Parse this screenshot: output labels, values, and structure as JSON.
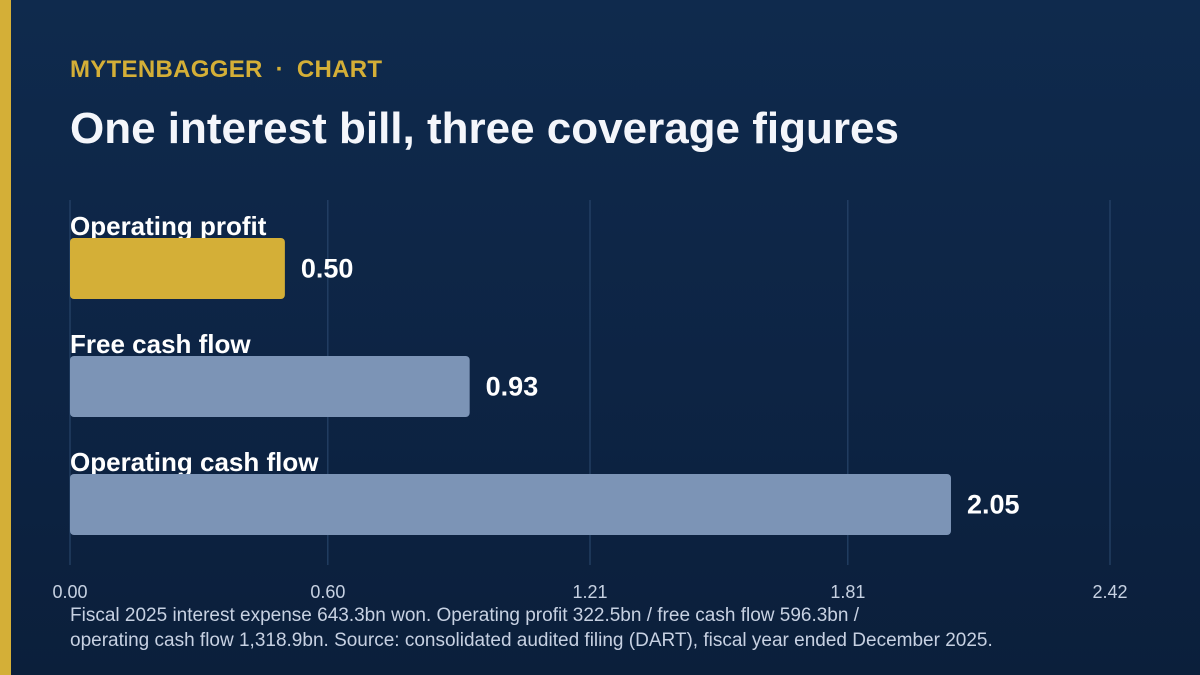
{
  "header": {
    "brand": "MYTENBAGGER",
    "separator": "·",
    "section": "CHART",
    "title": "One interest bill, three coverage figures"
  },
  "colors": {
    "accent": "#d4af37",
    "bar_highlight": "#d4af37",
    "bar_default": "#7c94b6",
    "gridline": "#2c4a70",
    "tick_label": "#c7d1e2"
  },
  "chart_data": {
    "type": "bar",
    "orientation": "horizontal",
    "categories": [
      "Operating profit",
      "Free cash flow",
      "Operating cash flow"
    ],
    "values": [
      0.5,
      0.93,
      2.05
    ],
    "value_labels": [
      "0.50",
      "0.93",
      "2.05"
    ],
    "highlight_index": 0,
    "xlim": [
      0,
      2.42
    ],
    "xticks": [
      0.0,
      0.6,
      1.21,
      1.81,
      2.42
    ],
    "xtick_labels": [
      "0.00",
      "0.60",
      "1.21",
      "1.81",
      "2.42"
    ],
    "grid": true
  },
  "footnote": {
    "line1": "Fiscal 2025 interest expense 643.3bn won. Operating profit 322.5bn / free cash flow 596.3bn /",
    "line2": "operating cash flow 1,318.9bn. Source: consolidated audited filing (DART), fiscal year ended December 2025."
  }
}
